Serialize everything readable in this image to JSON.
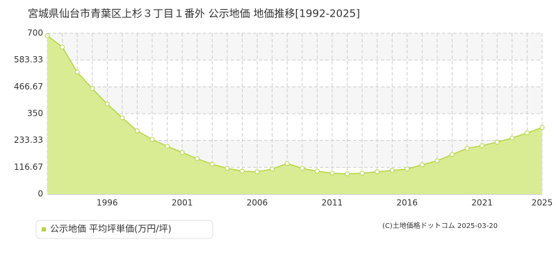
{
  "chart_data": {
    "type": "area",
    "title": "宮城県仙台市青葉区上杉３丁目１番外 公示地価 地価推移[1992-2025]",
    "x": [
      1992,
      1993,
      1994,
      1995,
      1996,
      1997,
      1998,
      1999,
      2000,
      2001,
      2002,
      2003,
      2004,
      2005,
      2006,
      2007,
      2008,
      2009,
      2010,
      2011,
      2012,
      2013,
      2014,
      2015,
      2016,
      2017,
      2018,
      2019,
      2020,
      2021,
      2022,
      2023,
      2024,
      2025
    ],
    "series": [
      {
        "name": "公示地価 平均坪単価(万円/坪)",
        "color": "#b5d445",
        "fill": "#d9ec93",
        "values": [
          690,
          640,
          531,
          459,
          392,
          332,
          275,
          238,
          208,
          181,
          154,
          130,
          112,
          100,
          97,
          109,
          133,
          112,
          100,
          91,
          88,
          91,
          97,
          103,
          109,
          127,
          145,
          172,
          199,
          211,
          226,
          244,
          266,
          290
        ]
      }
    ],
    "xlim": [
      1992,
      2025
    ],
    "xticks": [
      1996,
      2001,
      2006,
      2011,
      2016,
      2021,
      2025
    ],
    "ylim": [
      0,
      700
    ],
    "yticks": [
      0,
      116.67,
      233.33,
      350,
      466.67,
      583.33,
      700
    ],
    "grid": true,
    "source": "(C)土地価格ドットコム 2025-03-20"
  }
}
